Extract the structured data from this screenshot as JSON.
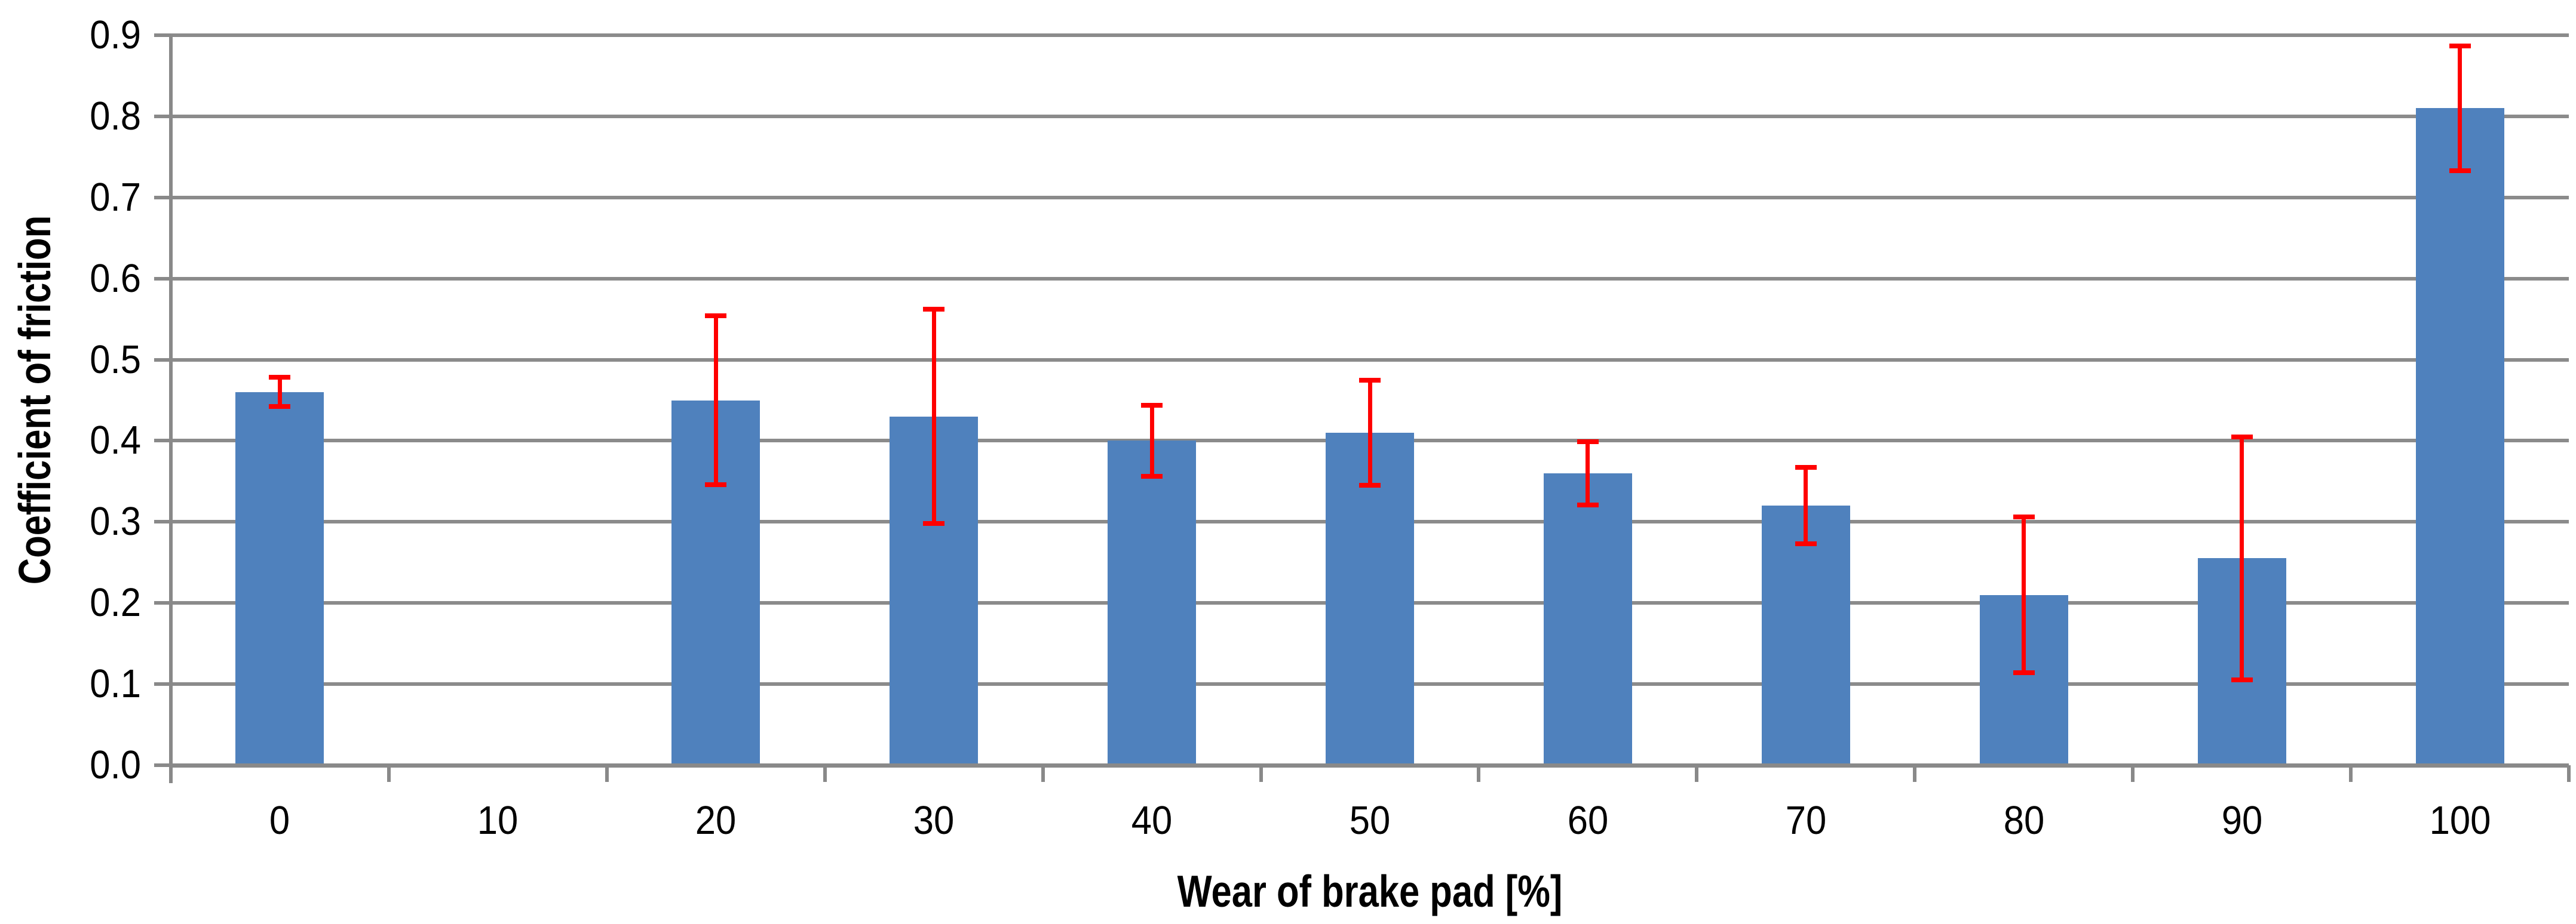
{
  "chart_data": {
    "type": "bar",
    "title": "",
    "xlabel": "Wear of brake pad [%]",
    "ylabel": "Coefficient of friction",
    "categories": [
      "0",
      "10",
      "20",
      "30",
      "40",
      "50",
      "60",
      "70",
      "80",
      "90",
      "100"
    ],
    "values": [
      0.46,
      null,
      0.45,
      0.43,
      0.4,
      0.41,
      0.36,
      0.32,
      0.21,
      0.255,
      0.81
    ],
    "error_bars": [
      0.018,
      null,
      0.104,
      0.132,
      0.044,
      0.065,
      0.039,
      0.047,
      0.096,
      0.15,
      0.077
    ],
    "ylim": [
      0.0,
      0.9
    ],
    "ytick_step": 0.1,
    "ytick_labels": [
      "0.0",
      "0.1",
      "0.2",
      "0.3",
      "0.4",
      "0.5",
      "0.6",
      "0.7",
      "0.8",
      "0.9"
    ],
    "grid": true,
    "legend": false,
    "colors": {
      "bar": "#4F81BD",
      "error_bar": "#FF0000",
      "gridline": "#8B8B8B",
      "axis": "#898989",
      "text": "#000000",
      "background": "#FFFFFF"
    }
  }
}
